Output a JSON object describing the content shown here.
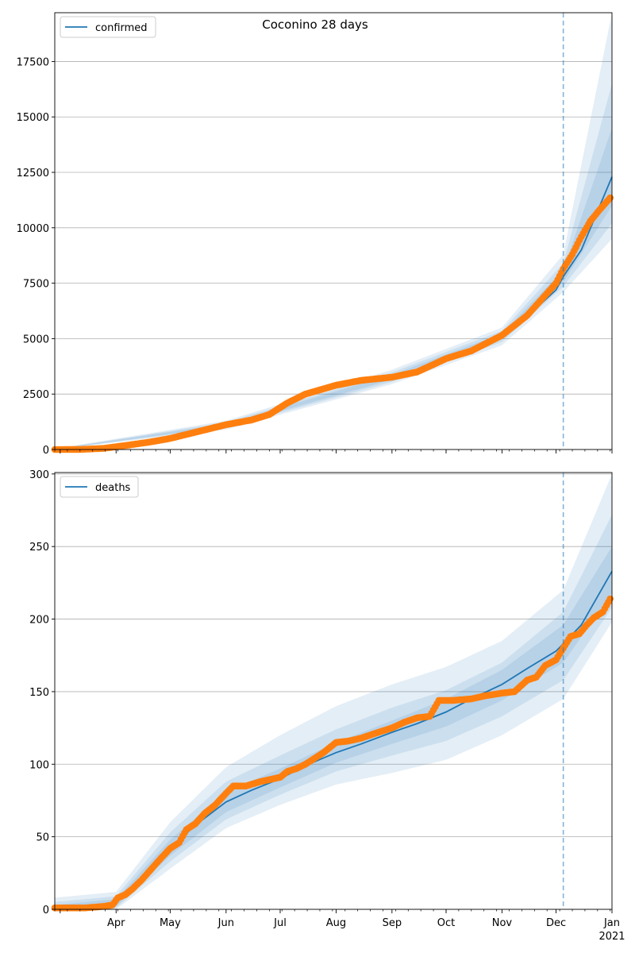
{
  "chart_data": [
    {
      "type": "line",
      "title": "Coconino 28 days",
      "legend": {
        "placement": "top-left",
        "entries": [
          "confirmed"
        ]
      },
      "grid": "y-major",
      "x_axis": {
        "type": "date",
        "range": [
          "2020-02-27",
          "2021-01-01"
        ],
        "tick_labels": []
      },
      "y_axis": {
        "range": [
          0,
          19700
        ],
        "ticks": [
          "0",
          "2500",
          "5000",
          "7500",
          "10000",
          "12500",
          "15000",
          "17500"
        ]
      },
      "forecast_start": "2020-12-05",
      "model_series": {
        "name": "confirmed",
        "color": "#1f77b4",
        "points": [
          [
            "2020-02-27",
            0
          ],
          [
            "2020-03-12",
            10
          ],
          [
            "2020-03-25",
            60
          ],
          [
            "2020-04-07",
            170
          ],
          [
            "2020-04-20",
            320
          ],
          [
            "2020-05-01",
            480
          ],
          [
            "2020-05-15",
            760
          ],
          [
            "2020-06-01",
            1100
          ],
          [
            "2020-06-15",
            1350
          ],
          [
            "2020-06-25",
            1600
          ],
          [
            "2020-07-05",
            2050
          ],
          [
            "2020-07-15",
            2450
          ],
          [
            "2020-08-01",
            2870
          ],
          [
            "2020-08-15",
            3100
          ],
          [
            "2020-09-01",
            3250
          ],
          [
            "2020-09-15",
            3450
          ],
          [
            "2020-10-01",
            4050
          ],
          [
            "2020-10-15",
            4400
          ],
          [
            "2020-11-01",
            5100
          ],
          [
            "2020-11-15",
            6000
          ],
          [
            "2020-12-01",
            7200
          ],
          [
            "2020-12-05",
            7800
          ],
          [
            "2020-12-15",
            9000
          ],
          [
            "2021-01-01",
            12300
          ]
        ]
      },
      "bands": [
        {
          "color": "#1f77b4",
          "opacity": 0.12,
          "lower": [
            [
              "2020-02-27",
              0
            ],
            [
              "2020-06-01",
              900
            ],
            [
              "2020-09-01",
              2950
            ],
            [
              "2020-11-01",
              4700
            ],
            [
              "2020-12-05",
              7100
            ],
            [
              "2021-01-01",
              9500
            ]
          ],
          "upper": [
            [
              "2020-02-27",
              30
            ],
            [
              "2020-06-01",
              1300
            ],
            [
              "2020-09-01",
              3600
            ],
            [
              "2020-11-01",
              5500
            ],
            [
              "2020-12-05",
              8800
            ],
            [
              "2021-01-01",
              19700
            ]
          ]
        },
        {
          "color": "#1f77b4",
          "opacity": 0.12,
          "lower": [
            [
              "2020-02-27",
              0
            ],
            [
              "2020-06-01",
              980
            ],
            [
              "2020-09-01",
              3050
            ],
            [
              "2020-11-01",
              4850
            ],
            [
              "2020-12-05",
              7350
            ],
            [
              "2021-01-01",
              10200
            ]
          ],
          "upper": [
            [
              "2020-02-27",
              20
            ],
            [
              "2020-06-01",
              1230
            ],
            [
              "2020-09-01",
              3480
            ],
            [
              "2020-11-01",
              5350
            ],
            [
              "2020-12-05",
              8400
            ],
            [
              "2021-01-01",
              16500
            ]
          ]
        },
        {
          "color": "#1f77b4",
          "opacity": 0.12,
          "lower": [
            [
              "2020-02-27",
              0
            ],
            [
              "2020-06-01",
              1040
            ],
            [
              "2020-09-01",
              3150
            ],
            [
              "2020-11-01",
              4980
            ],
            [
              "2020-12-05",
              7550
            ],
            [
              "2021-01-01",
              11000
            ]
          ],
          "upper": [
            [
              "2020-02-27",
              10
            ],
            [
              "2020-06-01",
              1170
            ],
            [
              "2020-09-01",
              3370
            ],
            [
              "2020-11-01",
              5230
            ],
            [
              "2020-12-05",
              8100
            ],
            [
              "2021-01-01",
              14500
            ]
          ]
        }
      ],
      "observed": {
        "color": "#ff7f0e",
        "points": [
          [
            "2020-02-27",
            0
          ],
          [
            "2020-03-12",
            5
          ],
          [
            "2020-03-25",
            50
          ],
          [
            "2020-04-07",
            190
          ],
          [
            "2020-04-20",
            340
          ],
          [
            "2020-05-01",
            500
          ],
          [
            "2020-05-15",
            780
          ],
          [
            "2020-06-01",
            1120
          ],
          [
            "2020-06-15",
            1330
          ],
          [
            "2020-06-25",
            1580
          ],
          [
            "2020-07-05",
            2100
          ],
          [
            "2020-07-15",
            2500
          ],
          [
            "2020-08-01",
            2900
          ],
          [
            "2020-08-15",
            3120
          ],
          [
            "2020-09-01",
            3260
          ],
          [
            "2020-09-15",
            3500
          ],
          [
            "2020-10-01",
            4100
          ],
          [
            "2020-10-15",
            4450
          ],
          [
            "2020-11-01",
            5150
          ],
          [
            "2020-11-15",
            6050
          ],
          [
            "2020-12-01",
            7500
          ],
          [
            "2020-12-05",
            8150
          ],
          [
            "2020-12-10",
            8800
          ],
          [
            "2020-12-15",
            9600
          ],
          [
            "2020-12-20",
            10300
          ],
          [
            "2020-12-25",
            10800
          ],
          [
            "2020-12-31",
            11350
          ]
        ]
      }
    },
    {
      "type": "line",
      "title": "",
      "legend": {
        "placement": "top-left",
        "entries": [
          "deaths"
        ]
      },
      "grid": "y-major",
      "x_axis": {
        "type": "date",
        "range": [
          "2020-02-27",
          "2021-01-01"
        ],
        "tick_labels": [
          {
            "date": "2020-04-01",
            "label": "Apr"
          },
          {
            "date": "2020-05-01",
            "label": "May"
          },
          {
            "date": "2020-06-01",
            "label": "Jun"
          },
          {
            "date": "2020-07-01",
            "label": "Jul"
          },
          {
            "date": "2020-08-01",
            "label": "Aug"
          },
          {
            "date": "2020-09-01",
            "label": "Sep"
          },
          {
            "date": "2020-10-01",
            "label": "Oct"
          },
          {
            "date": "2020-11-01",
            "label": "Nov"
          },
          {
            "date": "2020-12-01",
            "label": "Dec"
          },
          {
            "date": "2021-01-01",
            "label": "Jan",
            "sublabel": "2021"
          }
        ]
      },
      "y_axis": {
        "range": [
          0,
          301
        ],
        "ticks": [
          "0",
          "50",
          "100",
          "150",
          "200",
          "250",
          "300"
        ]
      },
      "forecast_start": "2020-12-05",
      "model_series": {
        "name": "deaths",
        "color": "#1f77b4",
        "points": [
          [
            "2020-02-27",
            0
          ],
          [
            "2020-03-20",
            1
          ],
          [
            "2020-04-01",
            5
          ],
          [
            "2020-04-15",
            22
          ],
          [
            "2020-05-01",
            42
          ],
          [
            "2020-05-15",
            58
          ],
          [
            "2020-06-01",
            74
          ],
          [
            "2020-06-15",
            82
          ],
          [
            "2020-07-01",
            90
          ],
          [
            "2020-07-15",
            99
          ],
          [
            "2020-08-01",
            108
          ],
          [
            "2020-08-15",
            114
          ],
          [
            "2020-09-01",
            122
          ],
          [
            "2020-09-15",
            128
          ],
          [
            "2020-10-01",
            136
          ],
          [
            "2020-10-15",
            145
          ],
          [
            "2020-11-01",
            155
          ],
          [
            "2020-11-15",
            166
          ],
          [
            "2020-12-01",
            178
          ],
          [
            "2020-12-05",
            183
          ],
          [
            "2020-12-15",
            196
          ],
          [
            "2021-01-01",
            233
          ]
        ]
      },
      "bands": [
        {
          "color": "#1f77b4",
          "opacity": 0.12,
          "lower": [
            [
              "2020-02-27",
              0
            ],
            [
              "2020-04-01",
              0
            ],
            [
              "2020-05-01",
              28
            ],
            [
              "2020-06-01",
              56
            ],
            [
              "2020-07-01",
              72
            ],
            [
              "2020-08-01",
              86
            ],
            [
              "2020-09-01",
              94
            ],
            [
              "2020-10-01",
              103
            ],
            [
              "2020-11-01",
              120
            ],
            [
              "2020-12-05",
              145
            ],
            [
              "2021-01-01",
              198
            ]
          ],
          "upper": [
            [
              "2020-02-27",
              8
            ],
            [
              "2020-04-01",
              12
            ],
            [
              "2020-05-01",
              60
            ],
            [
              "2020-06-01",
              98
            ],
            [
              "2020-07-01",
              120
            ],
            [
              "2020-08-01",
              140
            ],
            [
              "2020-09-01",
              155
            ],
            [
              "2020-10-01",
              167
            ],
            [
              "2020-11-01",
              185
            ],
            [
              "2020-12-05",
              220
            ],
            [
              "2021-01-01",
              300
            ]
          ]
        },
        {
          "color": "#1f77b4",
          "opacity": 0.12,
          "lower": [
            [
              "2020-02-27",
              0
            ],
            [
              "2020-04-01",
              1
            ],
            [
              "2020-05-01",
              33
            ],
            [
              "2020-06-01",
              62
            ],
            [
              "2020-07-01",
              79
            ],
            [
              "2020-08-01",
              95
            ],
            [
              "2020-09-01",
              106
            ],
            [
              "2020-10-01",
              116
            ],
            [
              "2020-11-01",
              133
            ],
            [
              "2020-12-05",
              158
            ],
            [
              "2021-01-01",
              208
            ]
          ],
          "upper": [
            [
              "2020-02-27",
              5
            ],
            [
              "2020-04-01",
              9
            ],
            [
              "2020-05-01",
              53
            ],
            [
              "2020-06-01",
              88
            ],
            [
              "2020-07-01",
              106
            ],
            [
              "2020-08-01",
              124
            ],
            [
              "2020-09-01",
              139
            ],
            [
              "2020-10-01",
              151
            ],
            [
              "2020-11-01",
              170
            ],
            [
              "2020-12-05",
              205
            ],
            [
              "2021-01-01",
              272
            ]
          ]
        },
        {
          "color": "#1f77b4",
          "opacity": 0.12,
          "lower": [
            [
              "2020-02-27",
              0
            ],
            [
              "2020-04-01",
              2
            ],
            [
              "2020-05-01",
              37
            ],
            [
              "2020-06-01",
              67
            ],
            [
              "2020-07-01",
              84
            ],
            [
              "2020-08-01",
              101
            ],
            [
              "2020-09-01",
              114
            ],
            [
              "2020-10-01",
              126
            ],
            [
              "2020-11-01",
              144
            ],
            [
              "2020-12-05",
              170
            ],
            [
              "2021-01-01",
              218
            ]
          ],
          "upper": [
            [
              "2020-02-27",
              3
            ],
            [
              "2020-04-01",
              7
            ],
            [
              "2020-05-01",
              48
            ],
            [
              "2020-06-01",
              81
            ],
            [
              "2020-07-01",
              97
            ],
            [
              "2020-08-01",
              115
            ],
            [
              "2020-09-01",
              130
            ],
            [
              "2020-10-01",
              145
            ],
            [
              "2020-11-01",
              165
            ],
            [
              "2020-12-05",
              196
            ],
            [
              "2021-01-01",
              250
            ]
          ]
        }
      ],
      "observed": {
        "color": "#ff7f0e",
        "points": [
          [
            "2020-02-27",
            1
          ],
          [
            "2020-03-15",
            1
          ],
          [
            "2020-03-25",
            2
          ],
          [
            "2020-03-30",
            3
          ],
          [
            "2020-04-02",
            8
          ],
          [
            "2020-04-06",
            10
          ],
          [
            "2020-04-10",
            14
          ],
          [
            "2020-04-15",
            20
          ],
          [
            "2020-04-20",
            27
          ],
          [
            "2020-04-25",
            34
          ],
          [
            "2020-05-01",
            42
          ],
          [
            "2020-05-06",
            46
          ],
          [
            "2020-05-10",
            55
          ],
          [
            "2020-05-15",
            59
          ],
          [
            "2020-05-20",
            66
          ],
          [
            "2020-05-26",
            72
          ],
          [
            "2020-06-01",
            80
          ],
          [
            "2020-06-05",
            85
          ],
          [
            "2020-06-12",
            85
          ],
          [
            "2020-06-20",
            88
          ],
          [
            "2020-07-01",
            91
          ],
          [
            "2020-07-05",
            95
          ],
          [
            "2020-07-10",
            97
          ],
          [
            "2020-07-15",
            100
          ],
          [
            "2020-07-20",
            104
          ],
          [
            "2020-07-25",
            108
          ],
          [
            "2020-08-01",
            115
          ],
          [
            "2020-08-08",
            116
          ],
          [
            "2020-08-15",
            118
          ],
          [
            "2020-08-22",
            121
          ],
          [
            "2020-09-01",
            125
          ],
          [
            "2020-09-08",
            129
          ],
          [
            "2020-09-15",
            132
          ],
          [
            "2020-09-22",
            133
          ],
          [
            "2020-09-27",
            144
          ],
          [
            "2020-10-05",
            144
          ],
          [
            "2020-10-15",
            145
          ],
          [
            "2020-10-22",
            147
          ],
          [
            "2020-11-01",
            149
          ],
          [
            "2020-11-08",
            150
          ],
          [
            "2020-11-15",
            158
          ],
          [
            "2020-11-20",
            160
          ],
          [
            "2020-11-25",
            168
          ],
          [
            "2020-12-01",
            172
          ],
          [
            "2020-12-05",
            180
          ],
          [
            "2020-12-09",
            188
          ],
          [
            "2020-12-14",
            190
          ],
          [
            "2020-12-18",
            196
          ],
          [
            "2020-12-22",
            201
          ],
          [
            "2020-12-27",
            205
          ],
          [
            "2020-12-31",
            214
          ]
        ]
      }
    }
  ]
}
